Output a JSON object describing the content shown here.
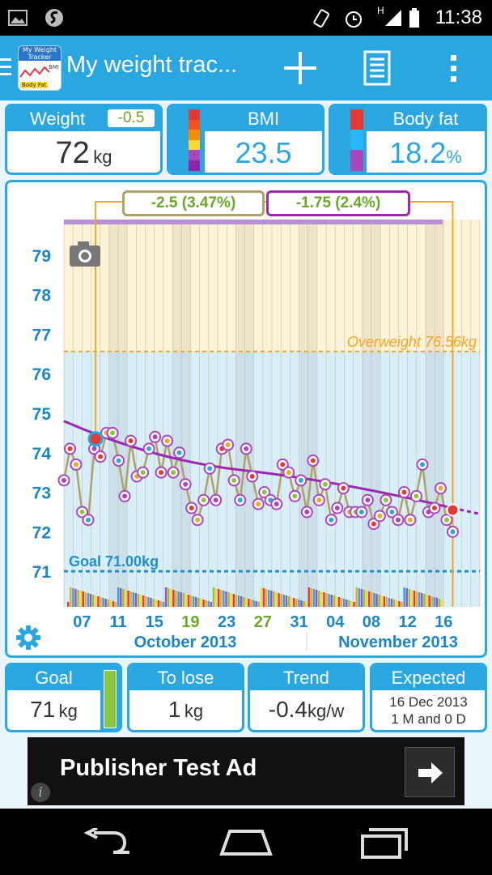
{
  "status_bar": {
    "time": "11:38",
    "network": "H"
  },
  "app_icon": {
    "line1": "My Weight",
    "line2": "Tracker",
    "bmi": "BMI",
    "body_fat": "Body Fat"
  },
  "action_bar": {
    "title": "My weight trac..."
  },
  "summary": {
    "weight": {
      "label": "Weight",
      "change": "-0.5",
      "value": "72",
      "unit": "kg"
    },
    "bmi": {
      "label": "BMI",
      "value": "23.5"
    },
    "body_fat": {
      "label": "Body fat",
      "value": "18.2",
      "unit": "%"
    }
  },
  "chart": {
    "range_label_left": "-2.5 (3.47%)",
    "range_label_right": "-1.75 (2.4%)",
    "overweight_label": "Overweight 76.56kg",
    "goal_label": "Goal 71.00kg",
    "y_ticks": [
      "79",
      "78",
      "77",
      "76",
      "75",
      "74",
      "73",
      "72",
      "71"
    ],
    "x_ticks": [
      "07",
      "11",
      "15",
      "19",
      "23",
      "27",
      "31",
      "04",
      "08",
      "12",
      "16"
    ],
    "month_left": "October 2013",
    "month_right": "November 2013"
  },
  "chart_data": {
    "type": "line",
    "ylim": [
      70.1,
      79.9
    ],
    "xlim": [
      0,
      46
    ],
    "overweight": 76.56,
    "goal": 71.0,
    "trend_start": [
      0,
      74.8
    ],
    "trend_mid": [
      43,
      72.6
    ],
    "trend_end": [
      46,
      72.45
    ],
    "marker_start": [
      3.5,
      74.35
    ],
    "marker_end": [
      43,
      72.55
    ],
    "weights": [
      73.3,
      74.1,
      73.7,
      72.5,
      72.3,
      74.1,
      73.9,
      74.5,
      74.5,
      73.8,
      72.9,
      74.3,
      73.4,
      73.5,
      74.1,
      74.4,
      73.5,
      74.3,
      73.5,
      74.0,
      73.2,
      72.6,
      72.3,
      72.8,
      73.6,
      72.8,
      74.1,
      74.2,
      73.3,
      72.8,
      74.1,
      73.4,
      72.7,
      73.0,
      72.8,
      72.7,
      73.7,
      73.5,
      72.9,
      73.3,
      72.5,
      73.8,
      72.8,
      73.2,
      72.3,
      72.6,
      73.1,
      72.5,
      72.5,
      72.5,
      72.8,
      72.2,
      72.4,
      72.8,
      72.5,
      72.3,
      73.0,
      72.3,
      72.9,
      73.7,
      72.5,
      72.6,
      73.1,
      72.3,
      72.0
    ]
  },
  "bottom_stats": {
    "goal": {
      "label": "Goal",
      "value": "71",
      "unit": "kg"
    },
    "to_lose": {
      "label": "To lose",
      "value": "1",
      "unit": "kg"
    },
    "trend": {
      "label": "Trend",
      "value": "-0.4",
      "unit": "kg/w"
    },
    "expected": {
      "label": "Expected",
      "date": "16 Dec 2013",
      "duration": "1 M and 0 D"
    }
  },
  "ad": {
    "text": "Publisher Test Ad"
  },
  "colors": {
    "accent": "#2aa7e0",
    "overweight_band": "#fdf3d6",
    "normal_band": "#d8eef9",
    "trend_line": "#9c27b0",
    "weight_line": "#b2a06a",
    "goal_line": "#1e90d0",
    "overweight_line": "#f5a623",
    "range_left_border": "#b2a06a",
    "range_right_border": "#9c27b0"
  }
}
